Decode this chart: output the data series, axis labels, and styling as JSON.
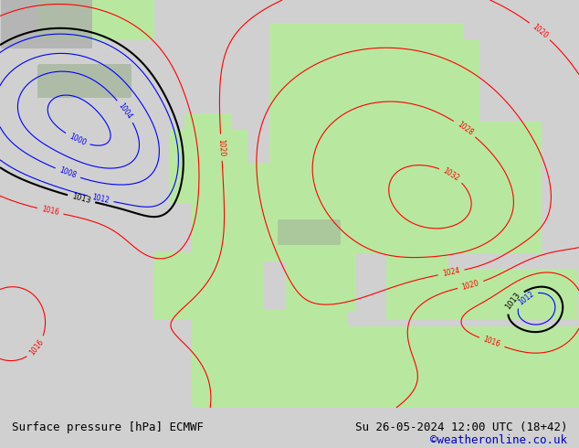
{
  "title_left": "Surface pressure [hPa] ECMWF",
  "title_right": "Su 26-05-2024 12:00 UTC (18+42)",
  "credit": "©weatheronline.co.uk",
  "bg_color": "#d0d0d0",
  "land_color": "#b8e8a0",
  "sea_color": "#e0e0e0",
  "bottom_bar_color": "#c8c8c8",
  "text_color_left": "#000000",
  "text_color_right": "#000000",
  "credit_color": "#0000cc",
  "font_size_bottom": 9,
  "font_size_credit": 9,
  "lon_min": -30,
  "lon_max": 45,
  "lat_min": 25,
  "lat_max": 75
}
